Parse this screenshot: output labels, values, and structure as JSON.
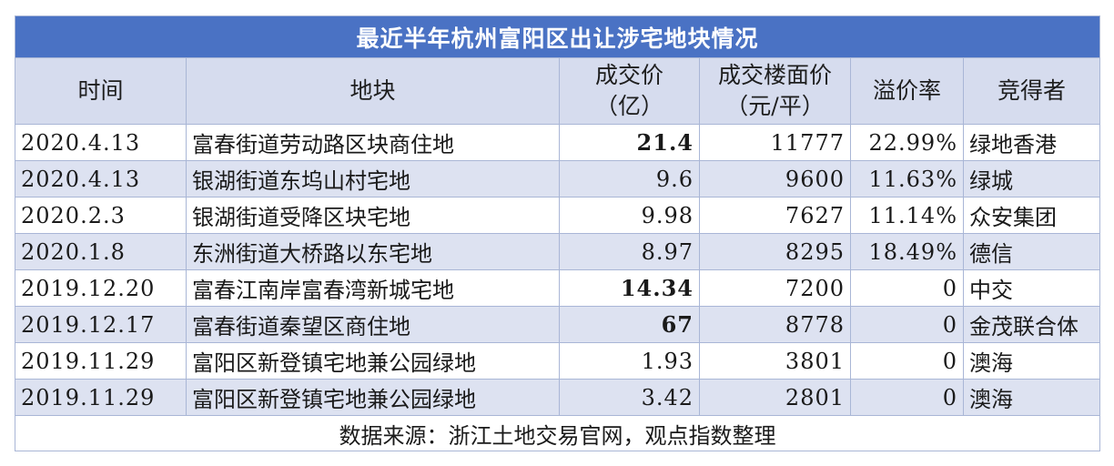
{
  "table": {
    "title": "最近半年杭州富阳区出让涉宅地块情况",
    "headers": [
      "时间",
      "地块",
      "成交价（亿）",
      "成交楼面价（元/平）",
      "溢价率",
      "竞得者"
    ],
    "header_lines": {
      "price": [
        "成交价",
        "（亿）"
      ],
      "floor_price": [
        "成交楼面价",
        "（元/平）"
      ]
    },
    "rows": [
      {
        "time": "2020.4.13",
        "plot": "富春街道劳动路区块商住地",
        "price": "21.4",
        "price_bold": true,
        "floor_price": "11777",
        "premium": "22.99%",
        "bidder": "绿地香港"
      },
      {
        "time": "2020.4.13",
        "plot": "银湖街道东坞山村宅地",
        "price": "9.6",
        "price_bold": false,
        "floor_price": "9600",
        "premium": "11.63%",
        "bidder": "绿城"
      },
      {
        "time": "2020.2.3",
        "plot": "银湖街道受降区块宅地",
        "price": "9.98",
        "price_bold": false,
        "floor_price": "7627",
        "premium": "11.14%",
        "bidder": "众安集团"
      },
      {
        "time": "2020.1.8",
        "plot": "东洲街道大桥路以东宅地",
        "price": "8.97",
        "price_bold": false,
        "floor_price": "8295",
        "premium": "18.49%",
        "bidder": "德信"
      },
      {
        "time": "2019.12.20",
        "plot": "富春江南岸富春湾新城宅地",
        "price": "14.34",
        "price_bold": true,
        "floor_price": "7200",
        "premium": "0",
        "bidder": "中交"
      },
      {
        "time": "2019.12.17",
        "plot": "富春街道秦望区商住地",
        "price": "67",
        "price_bold": true,
        "floor_price": "8778",
        "premium": "0",
        "bidder": "金茂联合体"
      },
      {
        "time": "2019.11.29",
        "plot": "富阳区新登镇宅地兼公园绿地",
        "price": "1.93",
        "price_bold": false,
        "floor_price": "3801",
        "premium": "0",
        "bidder": "澳海"
      },
      {
        "time": "2019.11.29",
        "plot": "富阳区新登镇宅地兼公园绿地",
        "price": "3.42",
        "price_bold": false,
        "floor_price": "2801",
        "premium": "0",
        "bidder": "澳海"
      }
    ],
    "source": "数据来源：浙江土地交易官网，观点指数整理"
  },
  "colors": {
    "title_bg": "#4a72c4",
    "header_bg": "#d6dcee",
    "alt_row_bg": "#dde2f1",
    "border": "#a9b6d6"
  }
}
